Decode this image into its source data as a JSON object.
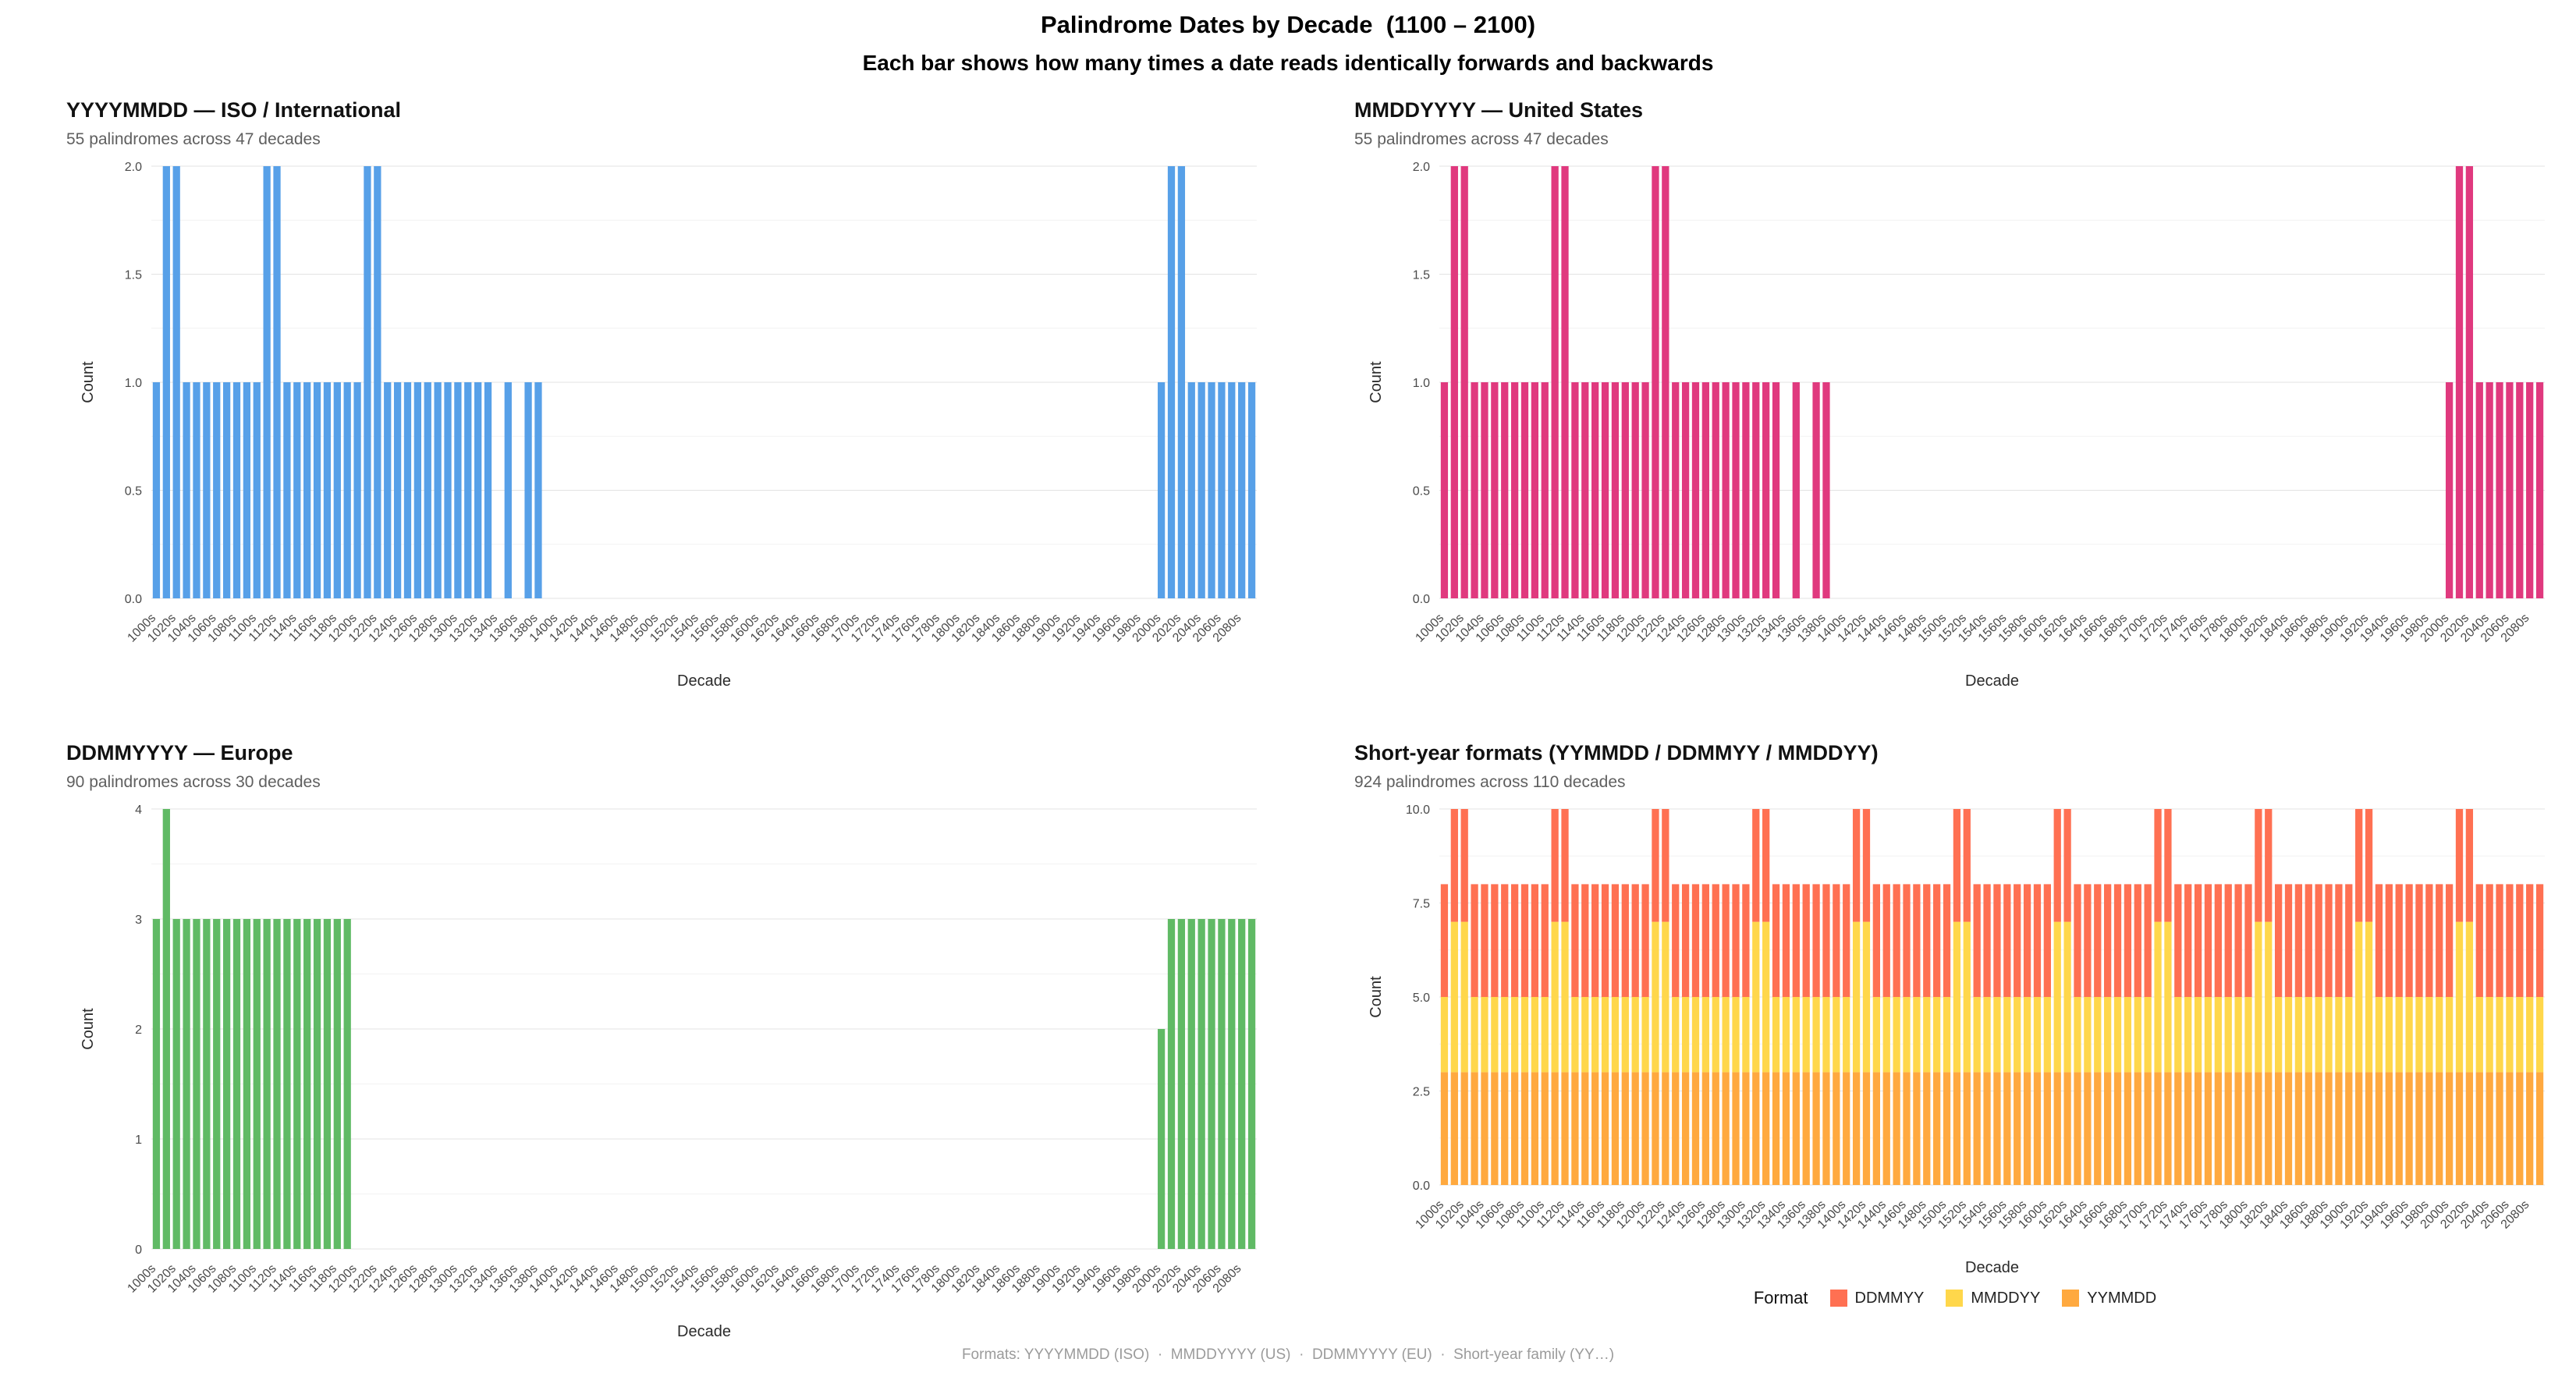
{
  "header": {
    "title": "Palindrome Dates by Decade  (1100 – 2100)",
    "subtitle": "Each bar shows how many times a date reads identically forwards and backwards"
  },
  "footer": {
    "caption": "Formats: YYYYMMDD (ISO)  ·  MMDDYYYY (US)  ·  DDMMYYYY (EU)  ·  Short-year family (YY…)"
  },
  "theme": {
    "background": "#ffffff",
    "grid_major": "#e3e3e3",
    "grid_minor": "#f2f2f2",
    "tick_text": "#4a4a4a",
    "axis_title_text": "#2b2b2b",
    "subtitle_text": "#5f5f5f"
  },
  "chart_data": [
    {
      "type": "bar",
      "name": "iso-chart",
      "title": "YYYYMMDD — ISO / International",
      "subtitle": "55 palindromes across 47 decades",
      "xlabel": "Decade",
      "ylabel": "Count",
      "bar_color": "#57A0E8",
      "ylim": [
        0,
        2
      ],
      "yticks": [
        0,
        0.5,
        1,
        1.5,
        2
      ],
      "ytick_labels": [
        "0.0",
        "0.5",
        "1.0",
        "1.5",
        "2.0"
      ],
      "yticks_minor": [
        0.25,
        0.75,
        1.25,
        1.75
      ],
      "grid": true,
      "label_every": 2,
      "categories": [
        "1000s",
        "1010s",
        "1020s",
        "1030s",
        "1040s",
        "1050s",
        "1060s",
        "1070s",
        "1080s",
        "1090s",
        "1100s",
        "1110s",
        "1120s",
        "1130s",
        "1140s",
        "1150s",
        "1160s",
        "1170s",
        "1180s",
        "1190s",
        "1200s",
        "1210s",
        "1220s",
        "1230s",
        "1240s",
        "1250s",
        "1260s",
        "1270s",
        "1280s",
        "1290s",
        "1300s",
        "1310s",
        "1320s",
        "1330s",
        "1340s",
        "1350s",
        "1360s",
        "1370s",
        "1380s",
        "1390s",
        "1400s",
        "1410s",
        "1420s",
        "1430s",
        "1440s",
        "1450s",
        "1460s",
        "1470s",
        "1480s",
        "1490s",
        "1500s",
        "1510s",
        "1520s",
        "1530s",
        "1540s",
        "1550s",
        "1560s",
        "1570s",
        "1580s",
        "1590s",
        "1600s",
        "1610s",
        "1620s",
        "1630s",
        "1640s",
        "1650s",
        "1660s",
        "1670s",
        "1680s",
        "1690s",
        "1700s",
        "1710s",
        "1720s",
        "1730s",
        "1740s",
        "1750s",
        "1760s",
        "1770s",
        "1780s",
        "1790s",
        "1800s",
        "1810s",
        "1820s",
        "1830s",
        "1840s",
        "1850s",
        "1860s",
        "1870s",
        "1880s",
        "1890s",
        "1900s",
        "1910s",
        "1920s",
        "1930s",
        "1940s",
        "1950s",
        "1960s",
        "1970s",
        "1980s",
        "1990s",
        "2000s",
        "2010s",
        "2020s",
        "2030s",
        "2040s",
        "2050s",
        "2060s",
        "2070s",
        "2080s",
        "2090s"
      ],
      "values": [
        1,
        2,
        2,
        1,
        1,
        1,
        1,
        1,
        1,
        1,
        1,
        2,
        2,
        1,
        1,
        1,
        1,
        1,
        1,
        1,
        1,
        2,
        2,
        1,
        1,
        1,
        1,
        1,
        1,
        1,
        1,
        1,
        1,
        1,
        0,
        1,
        0,
        1,
        1,
        0,
        0,
        0,
        0,
        0,
        0,
        0,
        0,
        0,
        0,
        0,
        0,
        0,
        0,
        0,
        0,
        0,
        0,
        0,
        0,
        0,
        0,
        0,
        0,
        0,
        0,
        0,
        0,
        0,
        0,
        0,
        0,
        0,
        0,
        0,
        0,
        0,
        0,
        0,
        0,
        0,
        0,
        0,
        0,
        0,
        0,
        0,
        0,
        0,
        0,
        0,
        0,
        0,
        0,
        0,
        0,
        0,
        0,
        0,
        0,
        0,
        1,
        2,
        2,
        1,
        1,
        1,
        1,
        1,
        1,
        1
      ]
    },
    {
      "type": "bar",
      "name": "us-chart",
      "title": "MMDDYYYY — United States",
      "subtitle": "55 palindromes across 47 decades",
      "xlabel": "Decade",
      "ylabel": "Count",
      "bar_color": "#E0397E",
      "ylim": [
        0,
        2
      ],
      "yticks": [
        0,
        0.5,
        1,
        1.5,
        2
      ],
      "ytick_labels": [
        "0.0",
        "0.5",
        "1.0",
        "1.5",
        "2.0"
      ],
      "yticks_minor": [
        0.25,
        0.75,
        1.25,
        1.75
      ],
      "grid": true,
      "label_every": 2,
      "categories_from": 0,
      "values": [
        1,
        2,
        2,
        1,
        1,
        1,
        1,
        1,
        1,
        1,
        1,
        2,
        2,
        1,
        1,
        1,
        1,
        1,
        1,
        1,
        1,
        2,
        2,
        1,
        1,
        1,
        1,
        1,
        1,
        1,
        1,
        1,
        1,
        1,
        0,
        1,
        0,
        1,
        1,
        0,
        0,
        0,
        0,
        0,
        0,
        0,
        0,
        0,
        0,
        0,
        0,
        0,
        0,
        0,
        0,
        0,
        0,
        0,
        0,
        0,
        0,
        0,
        0,
        0,
        0,
        0,
        0,
        0,
        0,
        0,
        0,
        0,
        0,
        0,
        0,
        0,
        0,
        0,
        0,
        0,
        0,
        0,
        0,
        0,
        0,
        0,
        0,
        0,
        0,
        0,
        0,
        0,
        0,
        0,
        0,
        0,
        0,
        0,
        0,
        0,
        1,
        2,
        2,
        1,
        1,
        1,
        1,
        1,
        1,
        1
      ]
    },
    {
      "type": "bar",
      "name": "eu-chart",
      "title": "DDMMYYYY — Europe",
      "subtitle": "90 palindromes across 30 decades",
      "xlabel": "Decade",
      "ylabel": "Count",
      "bar_color": "#60BA65",
      "ylim": [
        0,
        4
      ],
      "yticks": [
        0,
        1,
        2,
        3,
        4
      ],
      "ytick_labels": [
        "0",
        "1",
        "2",
        "3",
        "4"
      ],
      "yticks_minor": [
        0.5,
        1.5,
        2.5,
        3.5
      ],
      "grid": true,
      "label_every": 2,
      "categories_from": 0,
      "values": [
        3,
        4,
        3,
        3,
        3,
        3,
        3,
        3,
        3,
        3,
        3,
        3,
        3,
        3,
        3,
        3,
        3,
        3,
        3,
        3,
        0,
        0,
        0,
        0,
        0,
        0,
        0,
        0,
        0,
        0,
        0,
        0,
        0,
        0,
        0,
        0,
        0,
        0,
        0,
        0,
        0,
        0,
        0,
        0,
        0,
        0,
        0,
        0,
        0,
        0,
        0,
        0,
        0,
        0,
        0,
        0,
        0,
        0,
        0,
        0,
        0,
        0,
        0,
        0,
        0,
        0,
        0,
        0,
        0,
        0,
        0,
        0,
        0,
        0,
        0,
        0,
        0,
        0,
        0,
        0,
        0,
        0,
        0,
        0,
        0,
        0,
        0,
        0,
        0,
        0,
        0,
        0,
        0,
        0,
        0,
        0,
        0,
        0,
        0,
        0,
        2,
        3,
        3,
        3,
        3,
        3,
        3,
        3,
        3,
        3
      ]
    },
    {
      "type": "bar",
      "name": "short-year-chart",
      "stacked": true,
      "title": "Short-year formats (YYMMDD / DDMMYY / MMDDYY)",
      "subtitle": "924 palindromes across 110 decades",
      "xlabel": "Decade",
      "ylabel": "Count",
      "ylim": [
        0,
        10
      ],
      "yticks": [
        0,
        2.5,
        5,
        7.5,
        10
      ],
      "ytick_labels": [
        "0.0",
        "2.5",
        "5.0",
        "7.5",
        "10.0"
      ],
      "yticks_minor": [
        1.25,
        3.75,
        6.25,
        8.75
      ],
      "grid": true,
      "label_every": 2,
      "categories_from": 0,
      "legend_title": "Format",
      "legend_position": "bottom",
      "stack_order": [
        "YYMMDD",
        "MMDDYY",
        "DDMMYY"
      ],
      "series": [
        {
          "name": "DDMMYY",
          "color": "#FF7052",
          "values": [
            3,
            3,
            3,
            3,
            3,
            3,
            3,
            3,
            3,
            3,
            3,
            3,
            3,
            3,
            3,
            3,
            3,
            3,
            3,
            3,
            3,
            3,
            3,
            3,
            3,
            3,
            3,
            3,
            3,
            3,
            3,
            3,
            3,
            3,
            3,
            3,
            3,
            3,
            3,
            3,
            3,
            3,
            3,
            3,
            3,
            3,
            3,
            3,
            3,
            3,
            3,
            3,
            3,
            3,
            3,
            3,
            3,
            3,
            3,
            3,
            3,
            3,
            3,
            3,
            3,
            3,
            3,
            3,
            3,
            3,
            3,
            3,
            3,
            3,
            3,
            3,
            3,
            3,
            3,
            3,
            3,
            3,
            3,
            3,
            3,
            3,
            3,
            3,
            3,
            3,
            3,
            3,
            3,
            3,
            3,
            3,
            3,
            3,
            3,
            3,
            3,
            3,
            3,
            3,
            3,
            3,
            3,
            3,
            3,
            3
          ]
        },
        {
          "name": "MMDDYY",
          "color": "#FFD74B",
          "values": [
            2,
            4,
            4,
            2,
            2,
            2,
            2,
            2,
            2,
            2,
            2,
            4,
            4,
            2,
            2,
            2,
            2,
            2,
            2,
            2,
            2,
            4,
            4,
            2,
            2,
            2,
            2,
            2,
            2,
            2,
            2,
            4,
            4,
            2,
            2,
            2,
            2,
            2,
            2,
            2,
            2,
            4,
            4,
            2,
            2,
            2,
            2,
            2,
            2,
            2,
            2,
            4,
            4,
            2,
            2,
            2,
            2,
            2,
            2,
            2,
            2,
            4,
            4,
            2,
            2,
            2,
            2,
            2,
            2,
            2,
            2,
            4,
            4,
            2,
            2,
            2,
            2,
            2,
            2,
            2,
            2,
            4,
            4,
            2,
            2,
            2,
            2,
            2,
            2,
            2,
            2,
            4,
            4,
            2,
            2,
            2,
            2,
            2,
            2,
            2,
            2,
            4,
            4,
            2,
            2,
            2,
            2,
            2,
            2,
            2
          ]
        },
        {
          "name": "YYMMDD",
          "color": "#FFA93F",
          "values": [
            3,
            3,
            3,
            3,
            3,
            3,
            3,
            3,
            3,
            3,
            3,
            3,
            3,
            3,
            3,
            3,
            3,
            3,
            3,
            3,
            3,
            3,
            3,
            3,
            3,
            3,
            3,
            3,
            3,
            3,
            3,
            3,
            3,
            3,
            3,
            3,
            3,
            3,
            3,
            3,
            3,
            3,
            3,
            3,
            3,
            3,
            3,
            3,
            3,
            3,
            3,
            3,
            3,
            3,
            3,
            3,
            3,
            3,
            3,
            3,
            3,
            3,
            3,
            3,
            3,
            3,
            3,
            3,
            3,
            3,
            3,
            3,
            3,
            3,
            3,
            3,
            3,
            3,
            3,
            3,
            3,
            3,
            3,
            3,
            3,
            3,
            3,
            3,
            3,
            3,
            3,
            3,
            3,
            3,
            3,
            3,
            3,
            3,
            3,
            3,
            3,
            3,
            3,
            3,
            3,
            3,
            3,
            3,
            3,
            3
          ]
        }
      ]
    }
  ]
}
